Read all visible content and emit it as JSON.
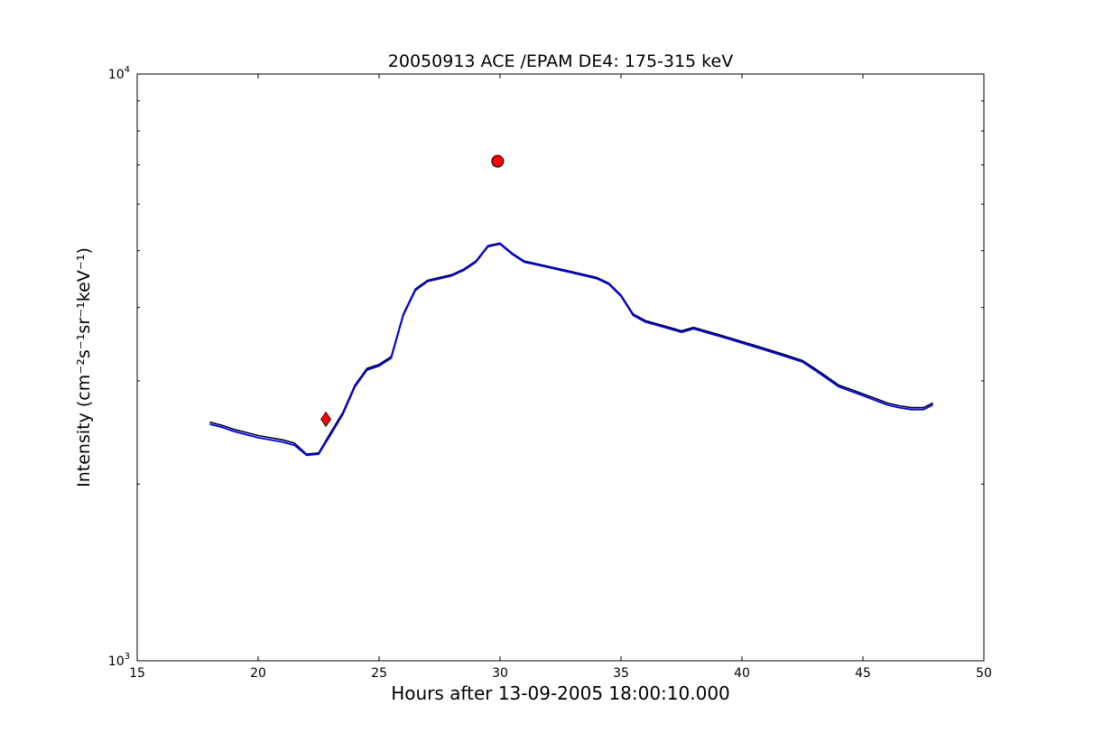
{
  "chart_data": {
    "type": "line",
    "title": "20050913 ACE /EPAM DE4: 175-315 keV",
    "xlabel": "Hours after 13-09-2005 18:00:10.000",
    "ylabel": "Intensity (cm⁻²s⁻¹sr⁻¹keV⁻¹)",
    "xlim": [
      15,
      50
    ],
    "ylim": [
      1000,
      10000
    ],
    "yscale": "log",
    "grid": false,
    "legend": "none",
    "xticks": [
      15,
      20,
      25,
      30,
      35,
      40,
      45,
      50
    ],
    "yticks": [
      {
        "value": 1000,
        "base": "10",
        "exp": "3"
      },
      {
        "value": 10000,
        "base": "10",
        "exp": "4"
      }
    ],
    "series": [
      {
        "color": "#000000",
        "x": [
          18.0,
          18.5,
          19.0,
          19.5,
          20.0,
          20.5,
          21.0,
          21.5,
          22.0,
          22.5,
          23.0,
          23.5,
          24.0,
          24.5,
          25.0,
          25.5,
          26.0,
          26.5,
          27.0,
          27.5,
          28.0,
          28.5,
          29.0,
          29.5,
          30.0,
          30.5,
          31.0,
          31.5,
          32.0,
          32.5,
          33.0,
          33.5,
          34.0,
          34.5,
          35.0,
          35.5,
          36.0,
          36.5,
          37.0,
          37.5,
          38.0,
          38.5,
          39.0,
          39.5,
          40.0,
          40.5,
          41.0,
          41.5,
          42.0,
          42.5,
          43.0,
          43.5,
          44.0,
          44.5,
          45.0,
          45.5,
          46.0,
          46.5,
          47.0,
          47.5,
          47.9
        ],
        "values": [
          2550,
          2520,
          2480,
          2450,
          2420,
          2400,
          2380,
          2350,
          2250,
          2260,
          2450,
          2650,
          2950,
          3150,
          3200,
          3300,
          3900,
          4300,
          4450,
          4500,
          4550,
          4650,
          4800,
          5100,
          5150,
          4950,
          4800,
          4750,
          4700,
          4650,
          4600,
          4550,
          4500,
          4400,
          4200,
          3900,
          3800,
          3750,
          3700,
          3650,
          3700,
          3650,
          3600,
          3550,
          3500,
          3450,
          3400,
          3350,
          3300,
          3250,
          3150,
          3050,
          2950,
          2900,
          2850,
          2800,
          2750,
          2720,
          2700,
          2700,
          2750
        ]
      },
      {
        "color": "#0000ff",
        "x": [
          18.0,
          18.5,
          19.0,
          19.5,
          20.0,
          20.5,
          21.0,
          21.5,
          22.0,
          22.5,
          23.0,
          23.5,
          24.0,
          24.5,
          25.0,
          25.5,
          26.0,
          26.5,
          27.0,
          27.5,
          28.0,
          28.5,
          29.0,
          29.5,
          30.0,
          30.5,
          31.0,
          31.5,
          32.0,
          32.5,
          33.0,
          33.5,
          34.0,
          34.5,
          35.0,
          35.5,
          36.0,
          36.5,
          37.0,
          37.5,
          38.0,
          38.5,
          39.0,
          39.5,
          40.0,
          40.5,
          41.0,
          41.5,
          42.0,
          42.5,
          43.0,
          43.5,
          44.0,
          44.5,
          45.0,
          45.5,
          46.0,
          46.5,
          47.0,
          47.5,
          47.9
        ],
        "values": [
          2530,
          2500,
          2460,
          2430,
          2400,
          2380,
          2360,
          2330,
          2240,
          2250,
          2430,
          2630,
          2930,
          3130,
          3180,
          3280,
          3880,
          4280,
          4430,
          4480,
          4530,
          4630,
          4780,
          5080,
          5130,
          4930,
          4780,
          4730,
          4680,
          4630,
          4580,
          4530,
          4480,
          4380,
          4180,
          3880,
          3780,
          3730,
          3680,
          3630,
          3680,
          3630,
          3580,
          3530,
          3480,
          3430,
          3380,
          3330,
          3280,
          3230,
          3130,
          3030,
          2930,
          2880,
          2830,
          2780,
          2730,
          2700,
          2680,
          2680,
          2730
        ]
      }
    ],
    "markers": [
      {
        "shape": "circle",
        "color": "#ff0000",
        "x": 29.9,
        "y": 7100
      },
      {
        "shape": "diamond",
        "color": "#ff0000",
        "x": 22.8,
        "y": 2580
      }
    ]
  }
}
